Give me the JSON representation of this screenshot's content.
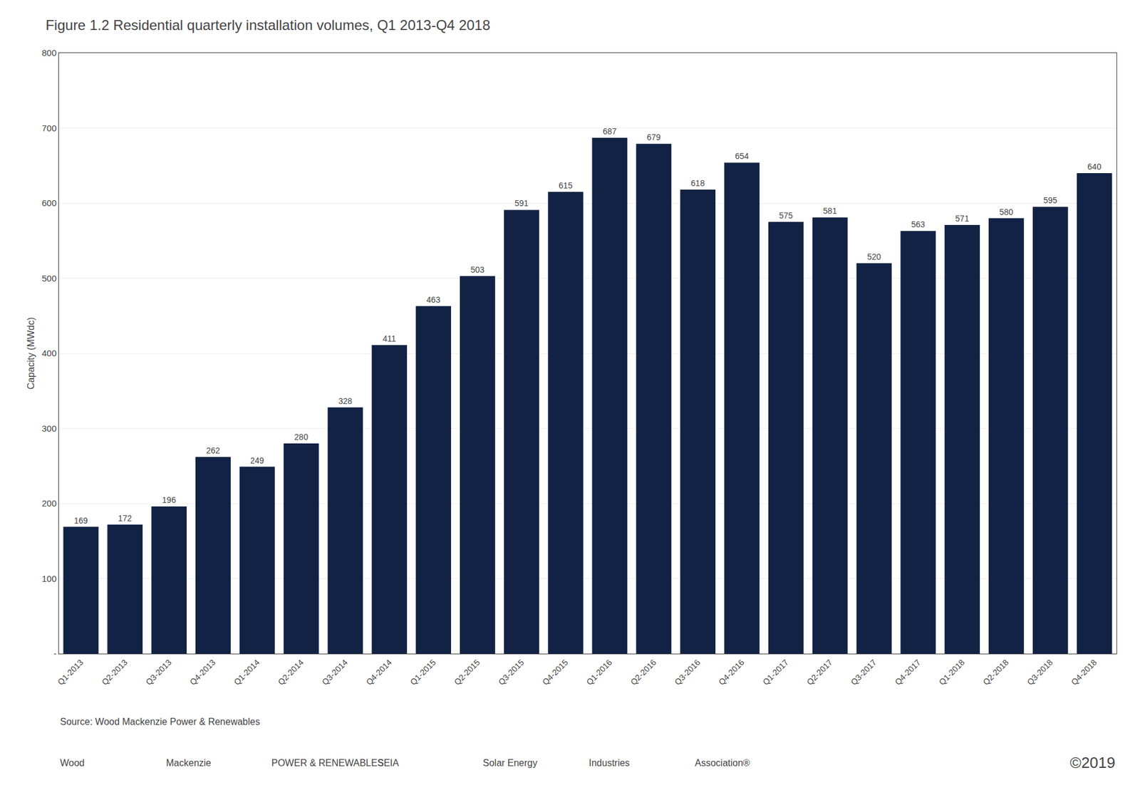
{
  "chart_data": {
    "type": "bar",
    "title": "Figure 1.2 Residential quarterly installation volumes, Q1 2013-Q4 2018",
    "ylabel": "Capacity (MWdc)",
    "categories": [
      "Q1-2013",
      "Q2-2013",
      "Q3-2013",
      "Q4-2013",
      "Q1-2014",
      "Q2-2014",
      "Q3-2014",
      "Q4-2014",
      "Q1-2015",
      "Q2-2015",
      "Q3-2015",
      "Q4-2015",
      "Q1-2016",
      "Q2-2016",
      "Q3-2016",
      "Q4-2016",
      "Q1-2017",
      "Q2-2017",
      "Q3-2017",
      "Q4-2017",
      "Q1-2018",
      "Q2-2018",
      "Q3-2018",
      "Q4-2018"
    ],
    "values": [
      169,
      172,
      196,
      262,
      249,
      280,
      328,
      411,
      463,
      503,
      591,
      615,
      687,
      679,
      618,
      654,
      575,
      581,
      520,
      563,
      571,
      580,
      595,
      640
    ],
    "color": "#112244",
    "ylim": [
      0,
      800
    ],
    "yticks": [
      {
        "value": 0,
        "label": "-"
      },
      100,
      200,
      300,
      400,
      500,
      600,
      700,
      800
    ],
    "grid": true,
    "data_labels": true,
    "annotations": [
      "Source: Wood Mackenzie Power & Renewables",
      "Wood",
      "Mackenzie",
      "POWER & RENEWABLES",
      "SEIA",
      "Solar Energy",
      "Industries",
      "Association®",
      "©2019"
    ]
  }
}
